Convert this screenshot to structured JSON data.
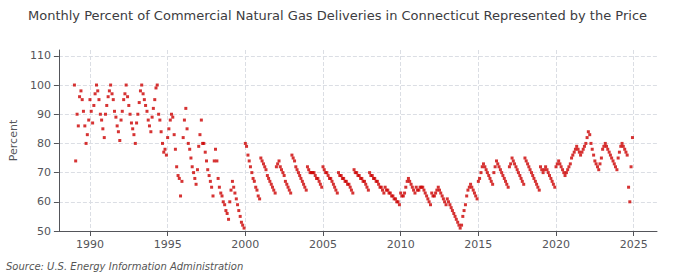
{
  "chart_data": {
    "type": "scatter",
    "title": "Monthly Percent of Commercial Natural Gas Deliveries in Connecticut Represented by the Price",
    "ylabel": "Percent",
    "annotation": "Source: U.S. Energy Information Administration",
    "xlim": [
      1988.0,
      2026.5
    ],
    "ylim": [
      50,
      112
    ],
    "xticks": [
      1990,
      1995,
      2000,
      2005,
      2010,
      2015,
      2020,
      2025
    ],
    "yticks": [
      50,
      60,
      70,
      80,
      90,
      100,
      110
    ],
    "color": "#cc0000",
    "marker": "square",
    "grid": true,
    "x": [
      1989.0,
      1989.08,
      1989.17,
      1989.25,
      1989.33,
      1989.42,
      1989.5,
      1989.58,
      1989.67,
      1989.75,
      1989.83,
      1989.92,
      1990.0,
      1990.08,
      1990.17,
      1990.25,
      1990.33,
      1990.42,
      1990.5,
      1990.58,
      1990.67,
      1990.75,
      1990.83,
      1990.92,
      1991.0,
      1991.08,
      1991.17,
      1991.25,
      1991.33,
      1991.42,
      1991.5,
      1991.58,
      1991.67,
      1991.75,
      1991.83,
      1991.92,
      1992.0,
      1992.08,
      1992.17,
      1992.25,
      1992.33,
      1992.42,
      1992.5,
      1992.58,
      1992.67,
      1992.75,
      1992.83,
      1992.92,
      1993.0,
      1993.08,
      1993.17,
      1993.25,
      1993.33,
      1993.42,
      1993.5,
      1993.58,
      1993.67,
      1993.75,
      1993.83,
      1993.92,
      1994.0,
      1994.08,
      1994.17,
      1994.25,
      1994.33,
      1994.42,
      1994.5,
      1994.58,
      1994.67,
      1994.75,
      1994.83,
      1994.92,
      1995.0,
      1995.08,
      1995.17,
      1995.25,
      1995.33,
      1995.42,
      1995.5,
      1995.58,
      1995.67,
      1995.75,
      1995.83,
      1995.92,
      1996.0,
      1996.08,
      1996.17,
      1996.25,
      1996.33,
      1996.42,
      1996.5,
      1996.58,
      1996.67,
      1996.75,
      1996.83,
      1996.92,
      1997.0,
      1997.08,
      1997.17,
      1997.25,
      1997.33,
      1997.42,
      1997.5,
      1997.58,
      1997.67,
      1997.75,
      1997.83,
      1997.92,
      1998.0,
      1998.08,
      1998.17,
      1998.25,
      1998.33,
      1998.42,
      1998.5,
      1998.58,
      1998.67,
      1998.75,
      1998.83,
      1998.92,
      1999.0,
      1999.08,
      1999.17,
      1999.25,
      1999.33,
      1999.42,
      1999.5,
      1999.58,
      1999.67,
      1999.75,
      1999.83,
      1999.92,
      2000.0,
      2000.08,
      2000.17,
      2000.25,
      2000.33,
      2000.42,
      2000.5,
      2000.58,
      2000.67,
      2000.75,
      2000.83,
      2000.92,
      2001.0,
      2001.08,
      2001.17,
      2001.25,
      2001.33,
      2001.42,
      2001.5,
      2001.58,
      2001.67,
      2001.75,
      2001.83,
      2001.92,
      2002.0,
      2002.08,
      2002.17,
      2002.25,
      2002.33,
      2002.42,
      2002.5,
      2002.58,
      2002.67,
      2002.75,
      2002.83,
      2002.92,
      2003.0,
      2003.08,
      2003.17,
      2003.25,
      2003.33,
      2003.42,
      2003.5,
      2003.58,
      2003.67,
      2003.75,
      2003.83,
      2003.92,
      2004.0,
      2004.08,
      2004.17,
      2004.25,
      2004.33,
      2004.42,
      2004.5,
      2004.58,
      2004.67,
      2004.75,
      2004.83,
      2004.92,
      2005.0,
      2005.08,
      2005.17,
      2005.25,
      2005.33,
      2005.42,
      2005.5,
      2005.58,
      2005.67,
      2005.75,
      2005.83,
      2005.92,
      2006.0,
      2006.08,
      2006.17,
      2006.25,
      2006.33,
      2006.42,
      2006.5,
      2006.58,
      2006.67,
      2006.75,
      2006.83,
      2006.92,
      2007.0,
      2007.08,
      2007.17,
      2007.25,
      2007.33,
      2007.42,
      2007.5,
      2007.58,
      2007.67,
      2007.75,
      2007.83,
      2007.92,
      2008.0,
      2008.08,
      2008.17,
      2008.25,
      2008.33,
      2008.42,
      2008.5,
      2008.58,
      2008.67,
      2008.75,
      2008.83,
      2008.92,
      2009.0,
      2009.08,
      2009.17,
      2009.25,
      2009.33,
      2009.42,
      2009.5,
      2009.58,
      2009.67,
      2009.75,
      2009.83,
      2009.92,
      2010.0,
      2010.08,
      2010.17,
      2010.25,
      2010.33,
      2010.42,
      2010.5,
      2010.58,
      2010.67,
      2010.75,
      2010.83,
      2010.92,
      2011.0,
      2011.08,
      2011.17,
      2011.25,
      2011.33,
      2011.42,
      2011.5,
      2011.58,
      2011.67,
      2011.75,
      2011.83,
      2011.92,
      2012.0,
      2012.08,
      2012.17,
      2012.25,
      2012.33,
      2012.42,
      2012.5,
      2012.58,
      2012.67,
      2012.75,
      2012.83,
      2012.92,
      2013.0,
      2013.08,
      2013.17,
      2013.25,
      2013.33,
      2013.42,
      2013.5,
      2013.58,
      2013.67,
      2013.75,
      2013.83,
      2013.92,
      2014.0,
      2014.08,
      2014.17,
      2014.25,
      2014.33,
      2014.42,
      2014.5,
      2014.58,
      2014.67,
      2014.75,
      2014.83,
      2014.92,
      2015.0,
      2015.08,
      2015.17,
      2015.25,
      2015.33,
      2015.42,
      2015.5,
      2015.58,
      2015.67,
      2015.75,
      2015.83,
      2015.92,
      2016.0,
      2016.08,
      2016.17,
      2016.25,
      2016.33,
      2016.42,
      2016.5,
      2016.58,
      2016.67,
      2016.75,
      2016.83,
      2016.92,
      2017.0,
      2017.08,
      2017.17,
      2017.25,
      2017.33,
      2017.42,
      2017.5,
      2017.58,
      2017.67,
      2017.75,
      2017.83,
      2017.92,
      2018.0,
      2018.08,
      2018.17,
      2018.25,
      2018.33,
      2018.42,
      2018.5,
      2018.58,
      2018.67,
      2018.75,
      2018.83,
      2018.92,
      2019.0,
      2019.08,
      2019.17,
      2019.25,
      2019.33,
      2019.42,
      2019.5,
      2019.58,
      2019.67,
      2019.75,
      2019.83,
      2019.92,
      2020.0,
      2020.08,
      2020.17,
      2020.25,
      2020.33,
      2020.42,
      2020.5,
      2020.58,
      2020.67,
      2020.75,
      2020.83,
      2020.92,
      2021.0,
      2021.08,
      2021.17,
      2021.25,
      2021.33,
      2021.42,
      2021.5,
      2021.58,
      2021.67,
      2021.75,
      2021.83,
      2021.92,
      2022.0,
      2022.08,
      2022.17,
      2022.25,
      2022.33,
      2022.42,
      2022.5,
      2022.58,
      2022.67,
      2022.75,
      2022.83,
      2022.92,
      2023.0,
      2023.08,
      2023.17,
      2023.25,
      2023.33,
      2023.42,
      2023.5,
      2023.58,
      2023.67,
      2023.75,
      2023.83,
      2023.92,
      2024.0,
      2024.08,
      2024.17,
      2024.25,
      2024.33,
      2024.42,
      2024.5,
      2024.58,
      2024.67,
      2024.75,
      2024.83,
      2024.92
    ],
    "values": [
      100.0,
      74.0,
      90.0,
      86.0,
      96.0,
      98.0,
      95.0,
      91.0,
      86.0,
      80.0,
      83.0,
      88.0,
      95.0,
      91.0,
      87.0,
      93.0,
      97.0,
      100.0,
      98.0,
      95.0,
      90.0,
      88.0,
      85.0,
      82.0,
      90.0,
      93.0,
      96.0,
      98.0,
      100.0,
      97.0,
      95.0,
      91.0,
      89.0,
      86.0,
      84.0,
      81.0,
      88.0,
      91.0,
      95.0,
      97.0,
      100.0,
      96.0,
      93.0,
      90.0,
      87.0,
      85.0,
      83.0,
      80.0,
      87.0,
      90.0,
      94.0,
      98.0,
      100.0,
      97.0,
      95.0,
      93.0,
      91.0,
      88.0,
      86.0,
      84.0,
      89.0,
      92.0,
      95.0,
      99.0,
      100.0,
      90.0,
      88.0,
      84.0,
      80.0,
      77.0,
      78.0,
      76.0,
      82.0,
      85.0,
      88.0,
      90.0,
      89.0,
      83.0,
      78.0,
      72.0,
      69.0,
      68.0,
      62.0,
      67.0,
      82.0,
      88.0,
      92.0,
      85.0,
      80.0,
      78.0,
      75.0,
      72.0,
      70.0,
      68.0,
      66.0,
      71.0,
      79.0,
      83.0,
      88.0,
      80.0,
      80.0,
      77.0,
      74.0,
      71.0,
      69.0,
      67.0,
      65.0,
      62.0,
      74.0,
      78.0,
      74.0,
      68.0,
      65.0,
      63.0,
      62.0,
      60.0,
      59.0,
      57.0,
      56.0,
      54.0,
      60.0,
      64.0,
      67.0,
      65.0,
      63.0,
      61.0,
      59.0,
      57.0,
      55.0,
      53.0,
      52.0,
      51.0,
      80.0,
      79.0,
      76.0,
      74.0,
      72.0,
      70.0,
      68.0,
      67.0,
      65.0,
      64.0,
      62.0,
      61.0,
      75.0,
      74.0,
      73.0,
      72.0,
      71.0,
      69.0,
      68.0,
      67.0,
      66.0,
      65.0,
      64.0,
      63.0,
      72.0,
      73.0,
      74.0,
      72.0,
      71.0,
      70.0,
      69.0,
      67.0,
      66.0,
      65.0,
      64.0,
      63.0,
      76.0,
      75.0,
      74.0,
      72.0,
      71.0,
      70.0,
      69.0,
      68.0,
      67.0,
      66.0,
      65.0,
      64.0,
      72.0,
      71.0,
      70.0,
      70.0,
      70.0,
      70.0,
      69.0,
      68.0,
      68.0,
      67.0,
      66.0,
      65.0,
      72.0,
      71.0,
      70.0,
      70.0,
      69.0,
      68.0,
      68.0,
      67.0,
      66.0,
      65.0,
      64.0,
      63.0,
      70.0,
      69.0,
      69.0,
      68.0,
      68.0,
      67.0,
      67.0,
      66.0,
      66.0,
      65.0,
      64.0,
      63.0,
      71.0,
      70.0,
      70.0,
      69.0,
      69.0,
      68.0,
      68.0,
      67.0,
      67.0,
      66.0,
      65.0,
      64.0,
      70.0,
      69.0,
      69.0,
      68.0,
      68.0,
      67.0,
      67.0,
      66.0,
      65.0,
      65.0,
      64.0,
      63.0,
      65.0,
      64.0,
      64.0,
      63.0,
      63.0,
      62.0,
      62.0,
      61.0,
      61.0,
      60.0,
      60.0,
      59.0,
      63.0,
      62.0,
      62.0,
      63.0,
      65.0,
      67.0,
      68.0,
      67.0,
      66.0,
      65.0,
      64.0,
      63.0,
      65.0,
      64.0,
      64.0,
      65.0,
      65.0,
      65.0,
      64.0,
      63.0,
      62.0,
      61.0,
      60.0,
      59.0,
      63.0,
      62.0,
      62.0,
      63.0,
      64.0,
      65.0,
      64.0,
      63.0,
      62.0,
      61.0,
      60.0,
      59.0,
      61.0,
      60.0,
      59.0,
      58.0,
      57.0,
      56.0,
      55.0,
      54.0,
      53.0,
      52.0,
      51.0,
      52.0,
      55.0,
      57.0,
      59.0,
      62.0,
      64.0,
      65.0,
      66.0,
      65.0,
      64.0,
      63.0,
      62.0,
      61.0,
      67.0,
      68.0,
      70.0,
      72.0,
      73.0,
      72.0,
      71.0,
      70.0,
      69.0,
      68.0,
      67.0,
      66.0,
      70.0,
      72.0,
      74.0,
      73.0,
      72.0,
      71.0,
      70.0,
      69.0,
      68.0,
      67.0,
      66.0,
      65.0,
      72.0,
      73.0,
      75.0,
      74.0,
      73.0,
      72.0,
      71.0,
      70.0,
      69.0,
      68.0,
      67.0,
      66.0,
      75.0,
      74.0,
      73.0,
      72.0,
      71.0,
      70.0,
      69.0,
      68.0,
      67.0,
      66.0,
      65.0,
      64.0,
      72.0,
      71.0,
      70.0,
      71.0,
      72.0,
      71.0,
      70.0,
      69.0,
      68.0,
      67.0,
      66.0,
      65.0,
      72.0,
      73.0,
      74.0,
      73.0,
      72.0,
      71.0,
      70.0,
      69.0,
      70.0,
      71.0,
      72.0,
      73.0,
      75.0,
      76.0,
      77.0,
      78.0,
      79.0,
      78.0,
      77.0,
      76.0,
      77.0,
      78.0,
      79.0,
      80.0,
      82.0,
      84.0,
      83.0,
      80.0,
      78.0,
      76.0,
      74.0,
      73.0,
      72.0,
      71.0,
      73.0,
      75.0,
      78.0,
      79.0,
      80.0,
      79.0,
      78.0,
      77.0,
      76.0,
      75.0,
      74.0,
      73.0,
      72.0,
      71.0,
      75.0,
      77.0,
      79.0,
      80.0,
      79.0,
      78.0,
      77.0,
      76.0,
      65.0,
      60.0,
      72.0,
      82.0
    ]
  }
}
